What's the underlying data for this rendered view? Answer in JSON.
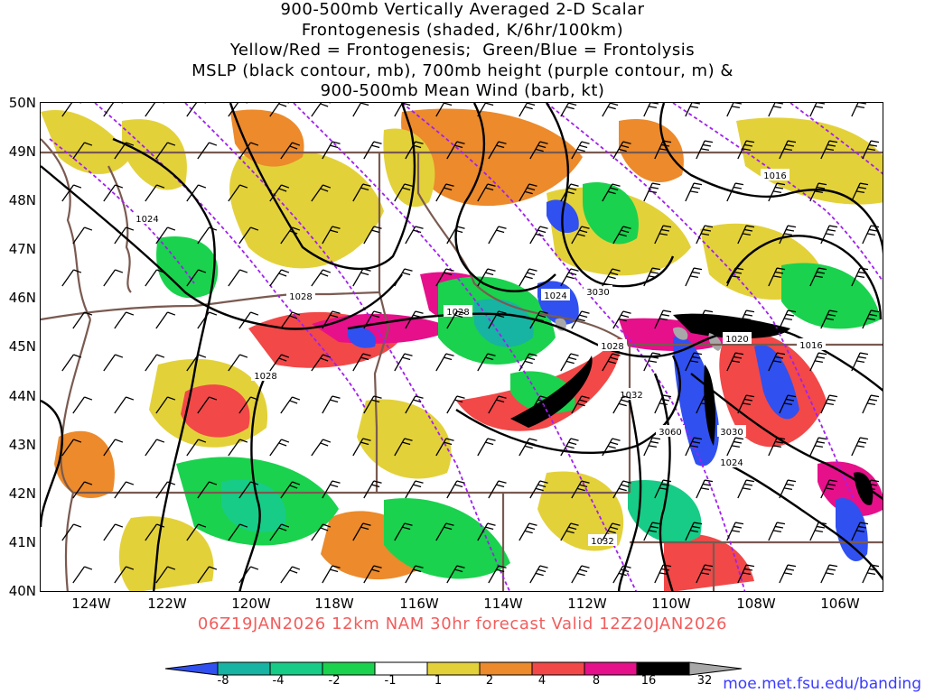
{
  "title": {
    "line1": "900-500mb Vertically Averaged 2-D Scalar",
    "line2": "Frontogenesis (shaded, K/6hr/100km)",
    "line3": "Yellow/Red = Frontogenesis;  Green/Blue = Frontolysis",
    "line4": "MSLP (black contour, mb), 700mb height (purple contour, m) &",
    "line5": "900-500mb Mean Wind (barb, kt)"
  },
  "lat_labels": [
    "50N",
    "49N",
    "48N",
    "47N",
    "46N",
    "45N",
    "44N",
    "43N",
    "42N",
    "41N",
    "40N"
  ],
  "lon_labels": [
    "124W",
    "122W",
    "120W",
    "118W",
    "116W",
    "114W",
    "112W",
    "110W",
    "108W",
    "106W"
  ],
  "valid_text": "06Z19JAN2026 12km NAM 30hr forecast Valid 12Z20JAN2026",
  "colorbar": {
    "labels": [
      "-8",
      "-4",
      "-2",
      "-1",
      "1",
      "2",
      "4",
      "8",
      "16",
      "32"
    ],
    "colors": [
      "#3050f0",
      "#17b3a3",
      "#17cc86",
      "#1ad24d",
      "#ffffff",
      "#e3d13a",
      "#ec8a2c",
      "#f24848",
      "#e6108a",
      "#000000",
      "#a8a8a8"
    ]
  },
  "contour_labels": [
    "1028",
    "1028",
    "1028",
    "1024",
    "3030",
    "1028",
    "1032",
    "1020",
    "1016",
    "1016",
    "3030",
    "3060",
    "1024",
    "1032",
    "1024"
  ],
  "credit": "moe.met.fsu.edu/banding",
  "colors": {
    "border": "#7a5a50",
    "mslp": "#000000",
    "height": "#a020f0",
    "valid_text": "#f25d5d",
    "credit": "#3a3aff"
  }
}
